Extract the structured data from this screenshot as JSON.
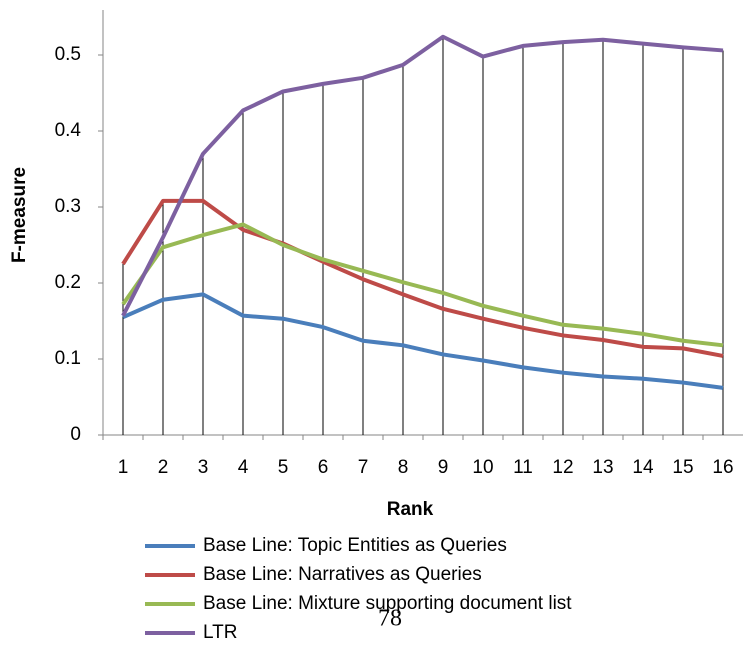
{
  "chart_data": {
    "type": "line",
    "xlabel": "Rank",
    "ylabel": "F-measure",
    "annotation": "78",
    "categories": [
      "1",
      "2",
      "3",
      "4",
      "5",
      "6",
      "7",
      "8",
      "9",
      "10",
      "11",
      "12",
      "13",
      "14",
      "15",
      "16"
    ],
    "ylim": [
      0,
      0.55
    ],
    "yticks": [
      0,
      0.1,
      0.2,
      0.3,
      0.4,
      0.5
    ],
    "drop_lines": true,
    "series": [
      {
        "name": "Base Line: Topic Entities as Queries",
        "color": "#4a7ebb",
        "values": [
          0.155,
          0.178,
          0.185,
          0.157,
          0.153,
          0.142,
          0.124,
          0.118,
          0.106,
          0.098,
          0.089,
          0.082,
          0.077,
          0.074,
          0.069,
          0.062
        ]
      },
      {
        "name": "Base Line: Narratives as Queries",
        "color": "#be4b48",
        "values": [
          0.225,
          0.308,
          0.308,
          0.27,
          0.252,
          0.228,
          0.205,
          0.185,
          0.166,
          0.153,
          0.141,
          0.131,
          0.125,
          0.116,
          0.114,
          0.104
        ]
      },
      {
        "name": "Base Line: Mixture supporting document list",
        "color": "#98b954",
        "values": [
          0.172,
          0.247,
          0.263,
          0.277,
          0.25,
          0.231,
          0.216,
          0.201,
          0.187,
          0.17,
          0.157,
          0.145,
          0.14,
          0.133,
          0.124,
          0.118
        ]
      },
      {
        "name": "LTR",
        "color": "#7d60a0",
        "values": [
          0.157,
          0.26,
          0.37,
          0.427,
          0.452,
          0.462,
          0.47,
          0.487,
          0.524,
          0.498,
          0.512,
          0.517,
          0.52,
          0.515,
          0.51,
          0.506
        ]
      }
    ]
  }
}
